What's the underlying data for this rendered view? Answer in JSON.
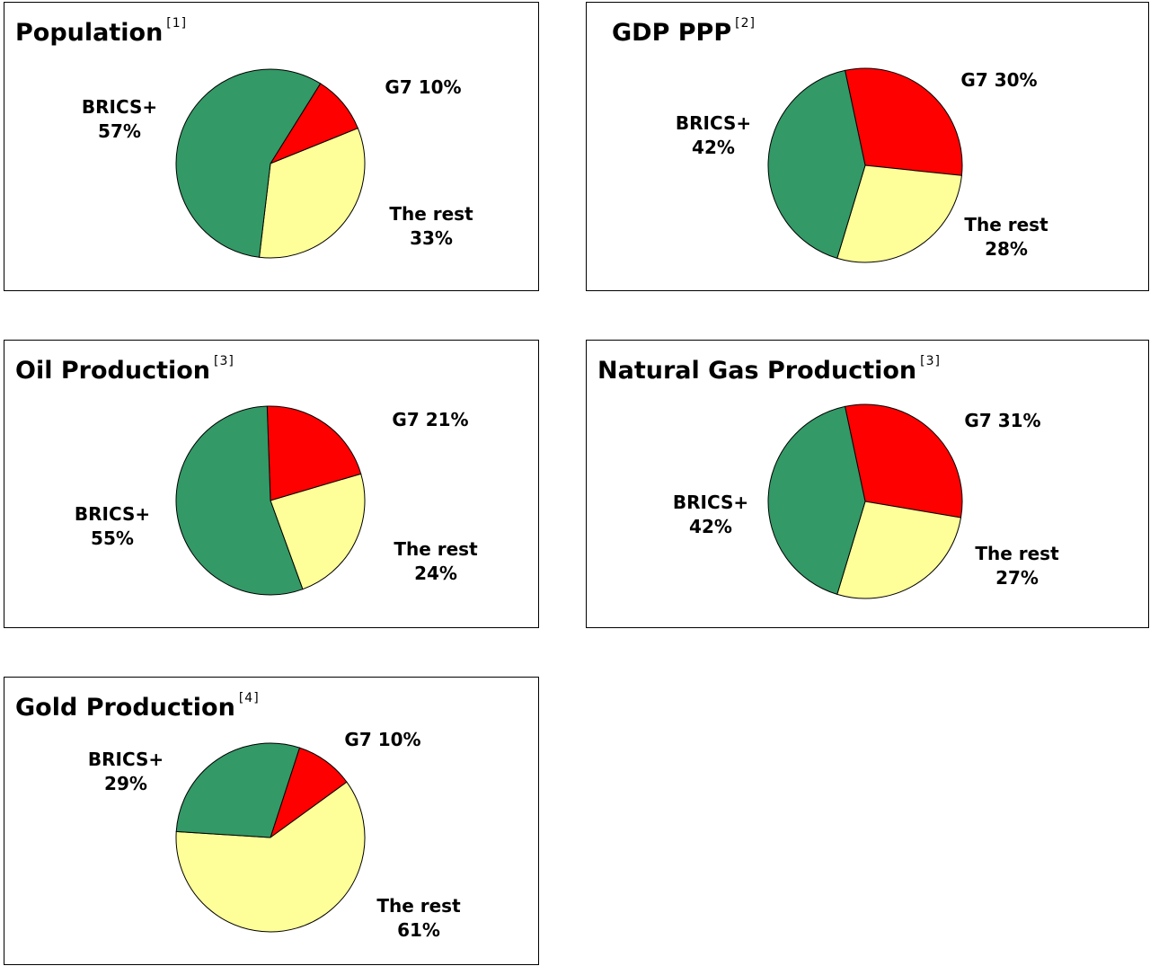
{
  "colors": {
    "BRICS+": "#339966",
    "G7": "#ff0000",
    "The rest": "#ffff99"
  },
  "chart_data": [
    {
      "type": "pie",
      "title": "Population",
      "note": "[1]",
      "slices": [
        {
          "name": "BRICS+",
          "value": 57,
          "line1": "BRICS+",
          "line2": "57%"
        },
        {
          "name": "G7",
          "value": 10,
          "line1": "G7 10%",
          "line2": ""
        },
        {
          "name": "The rest",
          "value": 33,
          "line1": "The rest",
          "line2": "33%"
        }
      ]
    },
    {
      "type": "pie",
      "title": "GDP PPP",
      "note": "[2]",
      "slices": [
        {
          "name": "BRICS+",
          "value": 42,
          "line1": "BRICS+",
          "line2": "42%"
        },
        {
          "name": "G7",
          "value": 30,
          "line1": "G7 30%",
          "line2": ""
        },
        {
          "name": "The rest",
          "value": 28,
          "line1": "The rest",
          "line2": "28%"
        }
      ]
    },
    {
      "type": "pie",
      "title": "Oil Production",
      "note": "[3]",
      "slices": [
        {
          "name": "BRICS+",
          "value": 55,
          "line1": "BRICS+",
          "line2": "55%"
        },
        {
          "name": "G7",
          "value": 21,
          "line1": "G7 21%",
          "line2": ""
        },
        {
          "name": "The rest",
          "value": 24,
          "line1": "The rest",
          "line2": "24%"
        }
      ]
    },
    {
      "type": "pie",
      "title": "Natural Gas Production",
      "note": "[3]",
      "slices": [
        {
          "name": "BRICS+",
          "value": 42,
          "line1": "BRICS+",
          "line2": "42%"
        },
        {
          "name": "G7",
          "value": 31,
          "line1": "G7 31%",
          "line2": ""
        },
        {
          "name": "The rest",
          "value": 27,
          "line1": "The rest",
          "line2": "27%"
        }
      ]
    },
    {
      "type": "pie",
      "title": "Gold Production",
      "note": "[4]",
      "slices": [
        {
          "name": "BRICS+",
          "value": 29,
          "line1": "BRICS+",
          "line2": "29%"
        },
        {
          "name": "G7",
          "value": 10,
          "line1": "G7 10%",
          "line2": ""
        },
        {
          "name": "The rest",
          "value": 61,
          "line1": "The rest",
          "line2": "61%"
        }
      ]
    }
  ]
}
